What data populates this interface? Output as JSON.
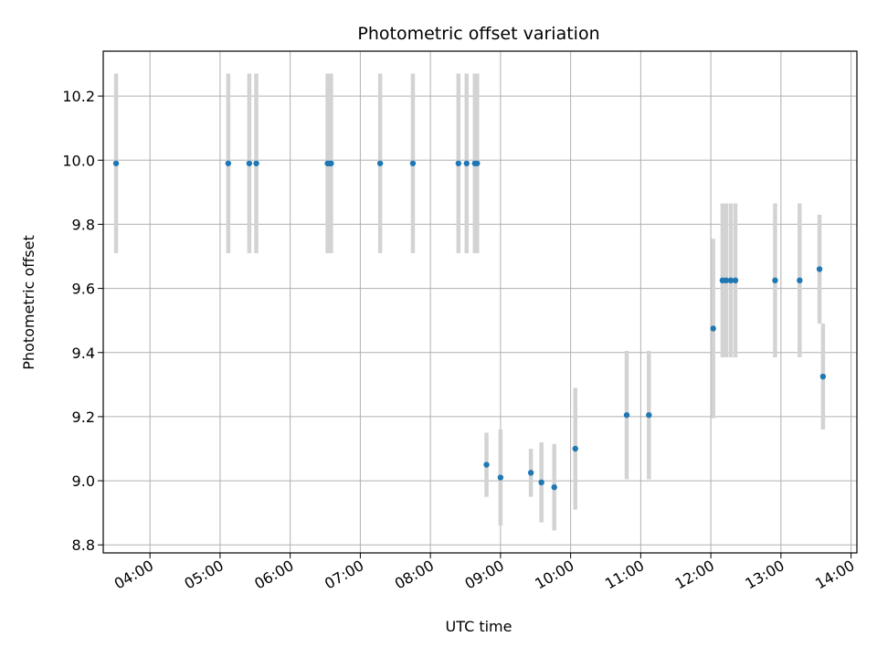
{
  "chart_data": {
    "type": "scatter",
    "title": "Photometric offset variation",
    "xlabel": "UTC time",
    "ylabel": "Photometric offset",
    "xlim": [
      "03:20",
      "14:05"
    ],
    "ylim": [
      8.775,
      10.34
    ],
    "x_ticks": [
      "04:00",
      "05:00",
      "06:00",
      "07:00",
      "08:00",
      "09:00",
      "10:00",
      "11:00",
      "12:00",
      "13:00",
      "14:00"
    ],
    "y_ticks": [
      "8.8",
      "9.0",
      "9.2",
      "9.4",
      "9.6",
      "9.8",
      "10.0",
      "10.2"
    ],
    "grid": true,
    "colors": {
      "point": "#1f77b4",
      "errorbar": "#d3d3d3",
      "grid": "#b0b0b0"
    },
    "series": [
      {
        "points": [
          {
            "x": "03:31",
            "y": 9.99,
            "yerr": 0.28
          },
          {
            "x": "05:07",
            "y": 9.99,
            "yerr": 0.28
          },
          {
            "x": "05:25",
            "y": 9.99,
            "yerr": 0.28
          },
          {
            "x": "05:31",
            "y": 9.99,
            "yerr": 0.28
          },
          {
            "x": "06:32",
            "y": 9.99,
            "yerr": 0.28
          },
          {
            "x": "06:34",
            "y": 9.99,
            "yerr": 0.28
          },
          {
            "x": "06:35",
            "y": 9.99,
            "yerr": 0.28
          },
          {
            "x": "07:17",
            "y": 9.99,
            "yerr": 0.28
          },
          {
            "x": "07:45",
            "y": 9.99,
            "yerr": 0.28
          },
          {
            "x": "08:24",
            "y": 9.99,
            "yerr": 0.28
          },
          {
            "x": "08:31",
            "y": 9.99,
            "yerr": 0.28
          },
          {
            "x": "08:38",
            "y": 9.99,
            "yerr": 0.28
          },
          {
            "x": "08:40",
            "y": 9.99,
            "yerr": 0.28
          },
          {
            "x": "08:48",
            "y": 9.05,
            "yerr": 0.1
          },
          {
            "x": "09:00",
            "y": 9.01,
            "yerr": 0.15
          },
          {
            "x": "09:26",
            "y": 9.025,
            "yerr": 0.075
          },
          {
            "x": "09:35",
            "y": 8.995,
            "yerr": 0.125
          },
          {
            "x": "09:46",
            "y": 8.98,
            "yerr": 0.135
          },
          {
            "x": "10:04",
            "y": 9.1,
            "yerr": 0.19
          },
          {
            "x": "10:48",
            "y": 9.205,
            "yerr": 0.2
          },
          {
            "x": "11:07",
            "y": 9.205,
            "yerr": 0.2
          },
          {
            "x": "12:02",
            "y": 9.475,
            "yerr": 0.28
          },
          {
            "x": "12:10",
            "y": 9.625,
            "yerr": 0.24
          },
          {
            "x": "12:13",
            "y": 9.625,
            "yerr": 0.24
          },
          {
            "x": "12:17",
            "y": 9.625,
            "yerr": 0.24
          },
          {
            "x": "12:21",
            "y": 9.625,
            "yerr": 0.24
          },
          {
            "x": "12:55",
            "y": 9.625,
            "yerr": 0.24
          },
          {
            "x": "13:16",
            "y": 9.625,
            "yerr": 0.24
          },
          {
            "x": "13:33",
            "y": 9.66,
            "yerr": 0.17
          },
          {
            "x": "13:36",
            "y": 9.325,
            "yerr": 0.165
          }
        ]
      }
    ]
  }
}
